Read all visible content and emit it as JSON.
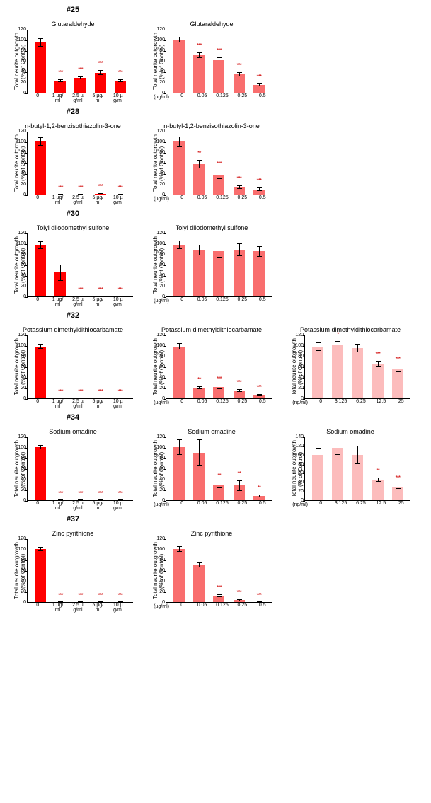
{
  "ylabel": "Total neurite outgrowth\n(% of Control)",
  "ylim": [
    0,
    120
  ],
  "ytick_step": 20,
  "label_fontsize": 8,
  "title_fontsize": 9,
  "colors": {
    "high": "#ff0000",
    "mid": "#f96e6e",
    "low": "#fcbcbc",
    "err": "#000000",
    "sig": "#d00000"
  },
  "x_sets": {
    "ug_high": {
      "unit": "",
      "labels": [
        "0",
        "1 µg/ml",
        "2.5 µg/ml",
        "5 µg/ml",
        "10 µg/ml"
      ]
    },
    "ug_mid": {
      "unit": "(µg/ml)",
      "labels": [
        "0",
        "0.05",
        "0.125",
        "0.25",
        "0.5"
      ]
    },
    "ng_low": {
      "unit": "(ng/ml)",
      "labels": [
        "0",
        "3.125",
        "6.25",
        "12.5",
        "25"
      ]
    }
  },
  "rows": [
    {
      "num": "#25",
      "name": "Glutaraldehyde",
      "charts": [
        {
          "color": "high",
          "xset": "ug_high",
          "values": [
            95,
            23,
            28,
            38,
            23
          ],
          "err": [
            8,
            3,
            3,
            5,
            3
          ],
          "sig": [
            "",
            "***",
            "***",
            "***",
            "***"
          ]
        },
        {
          "color": "mid",
          "xset": "ug_mid",
          "values": [
            100,
            71,
            62,
            35,
            15
          ],
          "err": [
            5,
            5,
            5,
            4,
            3
          ],
          "sig": [
            "",
            "***",
            "***",
            "***",
            "***"
          ]
        }
      ]
    },
    {
      "num": "#28",
      "name": "n-butyl-1,2-benzisothiazolin-3-one",
      "charts": [
        {
          "color": "high",
          "xset": "ug_high",
          "values": [
            100,
            0,
            0,
            2,
            0
          ],
          "err": [
            8,
            0,
            0,
            1,
            0
          ],
          "sig": [
            "",
            "***",
            "***",
            "***",
            "***"
          ]
        },
        {
          "color": "mid",
          "xset": "ug_mid",
          "values": [
            100,
            57,
            38,
            14,
            10
          ],
          "err": [
            10,
            8,
            8,
            3,
            3
          ],
          "sig": [
            "",
            "**",
            "***",
            "***",
            "***"
          ]
        }
      ]
    },
    {
      "num": "#30",
      "name": "Tolyl diiodomethyl sulfone",
      "charts": [
        {
          "color": "high",
          "xset": "ug_high",
          "values": [
            97,
            45,
            0,
            0,
            0
          ],
          "err": [
            7,
            15,
            0,
            0,
            0
          ],
          "sig": [
            "",
            "",
            "***",
            "***",
            "***"
          ]
        },
        {
          "color": "mid",
          "xset": "ug_mid",
          "values": [
            98,
            88,
            85,
            88,
            85
          ],
          "err": [
            8,
            10,
            12,
            12,
            10
          ],
          "sig": [
            "",
            "",
            "",
            "",
            ""
          ]
        }
      ]
    },
    {
      "num": "#32",
      "name": "Potassium dimethyldithiocarbamate",
      "charts": [
        {
          "color": "high",
          "xset": "ug_high",
          "values": [
            98,
            0,
            0,
            0,
            0
          ],
          "err": [
            5,
            0,
            0,
            0,
            0
          ],
          "sig": [
            "",
            "***",
            "***",
            "***",
            "***"
          ]
        },
        {
          "color": "mid",
          "xset": "ug_mid",
          "values": [
            98,
            20,
            21,
            15,
            6
          ],
          "err": [
            6,
            3,
            3,
            3,
            2
          ],
          "sig": [
            "",
            "**",
            "***",
            "***",
            "***"
          ]
        },
        {
          "color": "low",
          "xset": "ng_low",
          "values": [
            98,
            100,
            95,
            65,
            55
          ],
          "err": [
            8,
            8,
            8,
            6,
            6
          ],
          "sig": [
            "",
            "*",
            "",
            "***",
            "***"
          ]
        }
      ]
    },
    {
      "num": "#34",
      "name": "Sodium omadine",
      "charts": [
        {
          "color": "high",
          "xset": "ug_high",
          "values": [
            100,
            0,
            0,
            0,
            0
          ],
          "err": [
            4,
            0,
            0,
            0,
            0
          ],
          "sig": [
            "",
            "***",
            "***",
            "***",
            "***"
          ]
        },
        {
          "color": "mid",
          "xset": "ug_mid",
          "values": [
            100,
            90,
            28,
            28,
            8
          ],
          "err": [
            15,
            25,
            5,
            10,
            3
          ],
          "sig": [
            "",
            "",
            "**",
            "**",
            "**"
          ]
        },
        {
          "color": "low",
          "xset": "ng_low",
          "values": [
            100,
            115,
            100,
            45,
            30
          ],
          "err": [
            15,
            15,
            20,
            5,
            5
          ],
          "sig": [
            "",
            "",
            "",
            "**",
            "***"
          ],
          "ylim_override": 140
        }
      ]
    },
    {
      "num": "#37",
      "name": "Zinc pyrithione",
      "charts": [
        {
          "color": "high",
          "xset": "ug_high",
          "values": [
            100,
            0,
            0,
            0,
            0
          ],
          "err": [
            4,
            0,
            0,
            0,
            0
          ],
          "sig": [
            "",
            "***",
            "***",
            "***",
            "***"
          ]
        },
        {
          "color": "mid",
          "xset": "ug_mid",
          "values": [
            100,
            70,
            12,
            4,
            0
          ],
          "err": [
            5,
            5,
            3,
            2,
            0
          ],
          "sig": [
            "",
            "",
            "***",
            "***",
            "***"
          ]
        }
      ]
    }
  ]
}
